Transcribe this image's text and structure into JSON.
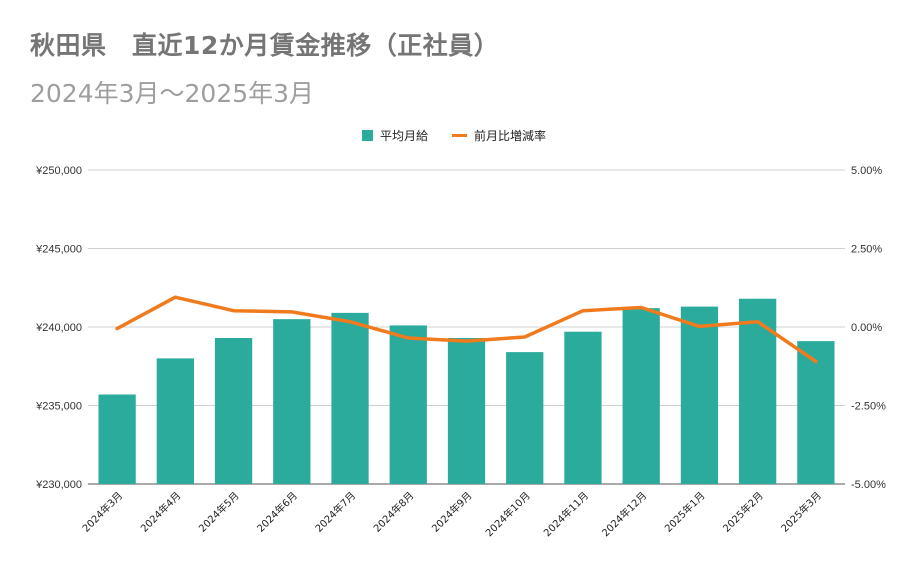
{
  "chart_data": {
    "type": "bar",
    "title": "秋田県　直近12か月賃金推移（正社員）",
    "subtitle": "2024年3月～2025年3月",
    "categories": [
      "2024年3月",
      "2024年4月",
      "2024年5月",
      "2024年6月",
      "2024年7月",
      "2024年8月",
      "2024年9月",
      "2024年10月",
      "2024年11月",
      "2024年12月",
      "2025年1月",
      "2025年2月",
      "2025年3月"
    ],
    "series": [
      {
        "name": "平均月給",
        "type": "bar",
        "axis": "left",
        "color": "#2bab9b",
        "values": [
          235700,
          238000,
          239300,
          240500,
          240900,
          240100,
          239300,
          238400,
          239700,
          241200,
          241300,
          241800,
          239100
        ]
      },
      {
        "name": "前月比増減率",
        "type": "line",
        "axis": "right",
        "color": "#f07b1e",
        "values": [
          -0.05,
          0.95,
          0.52,
          0.48,
          0.17,
          -0.35,
          -0.45,
          -0.32,
          0.52,
          0.62,
          0.02,
          0.17,
          -1.1
        ]
      }
    ],
    "y_left": {
      "min": 230000,
      "max": 250000,
      "ticks": [
        230000,
        235000,
        240000,
        245000,
        250000
      ],
      "tick_labels": [
        "¥230,000",
        "¥235,000",
        "¥240,000",
        "¥245,000",
        "¥250,000"
      ]
    },
    "y_right": {
      "min": -5,
      "max": 5,
      "ticks": [
        -5,
        -2.5,
        0,
        2.5,
        5
      ],
      "tick_labels": [
        "-5.00%",
        "-2.50%",
        "0.00%",
        "2.50%",
        "5.00%"
      ]
    },
    "grid": true,
    "legend_position": "top-center",
    "legend": [
      "平均月給",
      "前月比増減率"
    ]
  }
}
